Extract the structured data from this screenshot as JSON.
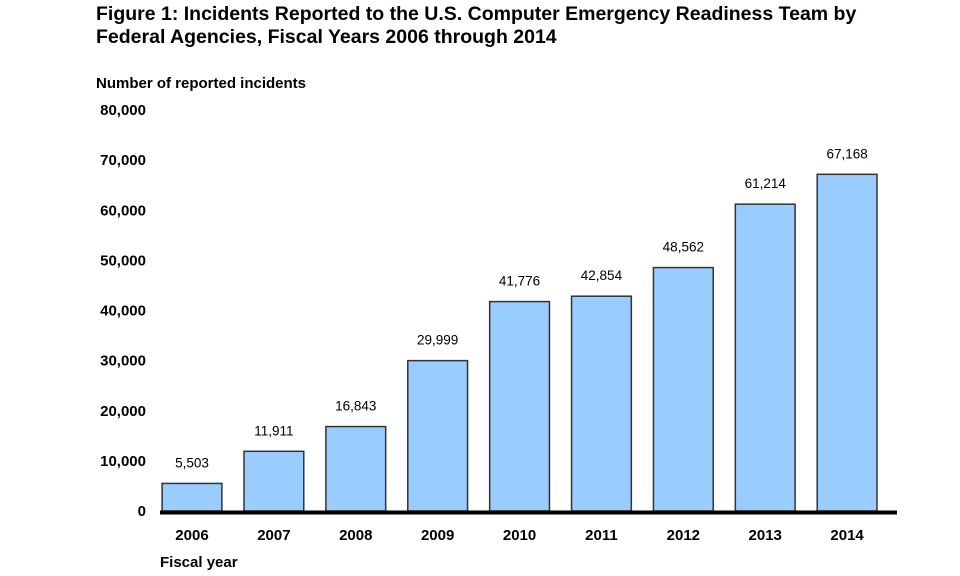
{
  "title_lines": [
    "Figure 1: Incidents Reported to the U.S. Computer Emergency Readiness Team by",
    "Federal Agencies, Fiscal Years 2006 through 2014"
  ],
  "chart_data": {
    "type": "bar",
    "title": "Figure 1: Incidents Reported to the U.S. Computer Emergency Readiness Team by Federal Agencies, Fiscal Years 2006 through 2014",
    "xlabel": "Fiscal year",
    "ylabel": "Number of reported incidents",
    "categories": [
      "2006",
      "2007",
      "2008",
      "2009",
      "2010",
      "2011",
      "2012",
      "2013",
      "2014"
    ],
    "values": [
      5503,
      11911,
      16843,
      29999,
      41776,
      42854,
      48562,
      61214,
      67168
    ],
    "data_labels": [
      "5,503",
      "11,911",
      "16,843",
      "29,999",
      "41,776",
      "42,854",
      "48,562",
      "61,214",
      "67,168"
    ],
    "ylim": [
      0,
      80000
    ],
    "yticks": [
      0,
      10000,
      20000,
      30000,
      40000,
      50000,
      60000,
      70000,
      80000
    ],
    "ytick_labels": [
      "0",
      "10,000",
      "20,000",
      "30,000",
      "40,000",
      "50,000",
      "60,000",
      "70,000",
      "80,000"
    ],
    "grid": false,
    "legend": "none",
    "colors": {
      "bar_fill": "#99ccff",
      "bar_stroke": "#333333",
      "axis": "#000000"
    }
  }
}
